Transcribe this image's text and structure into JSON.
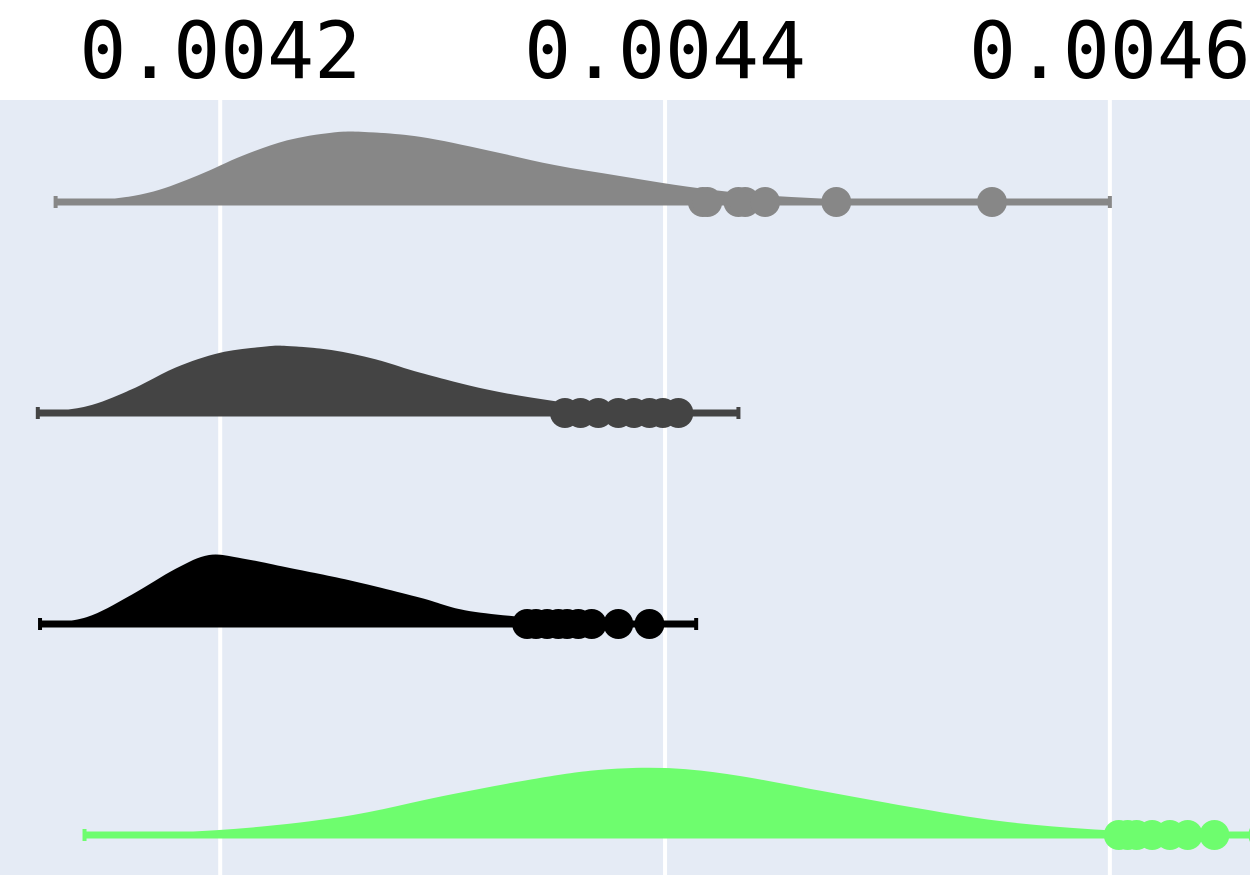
{
  "chart_data": {
    "type": "violin",
    "title": "",
    "xlabel": "",
    "ylabel": "",
    "x_axis_position": "top",
    "xlim": [
      0.004101,
      0.004663
    ],
    "xticks": [
      0.0042,
      0.0044,
      0.0046
    ],
    "xtick_labels": [
      "0.0042",
      "0.0044",
      "0.0046"
    ],
    "grid": true,
    "legend": "none",
    "background_color": "#e5ebf5",
    "gridline_color": "#ffffff",
    "series": [
      {
        "color": "#878787",
        "min": 0.004126,
        "max": 0.0046,
        "density": [
          [
            0.004126,
            0.0
          ],
          [
            0.00415,
            0.04
          ],
          [
            0.00417,
            0.15
          ],
          [
            0.00419,
            0.38
          ],
          [
            0.00421,
            0.66
          ],
          [
            0.00423,
            0.88
          ],
          [
            0.00425,
            0.99
          ],
          [
            0.004265,
            1.0
          ],
          [
            0.00429,
            0.93
          ],
          [
            0.00432,
            0.74
          ],
          [
            0.00435,
            0.53
          ],
          [
            0.00438,
            0.37
          ],
          [
            0.00441,
            0.22
          ],
          [
            0.00444,
            0.11
          ],
          [
            0.00447,
            0.05
          ],
          [
            0.0045,
            0.02
          ],
          [
            0.00454,
            0.006
          ],
          [
            0.0046,
            0.0
          ]
        ],
        "outliers": [
          0.004417,
          0.004419,
          0.004433,
          0.004436,
          0.004445,
          0.004477,
          0.004547
        ]
      },
      {
        "color": "#444444",
        "min": 0.004118,
        "max": 0.004433,
        "density": [
          [
            0.004118,
            0.0
          ],
          [
            0.00414,
            0.1
          ],
          [
            0.00416,
            0.35
          ],
          [
            0.00418,
            0.68
          ],
          [
            0.0042,
            0.9
          ],
          [
            0.00422,
            0.99
          ],
          [
            0.00423,
            1.0
          ],
          [
            0.00425,
            0.94
          ],
          [
            0.00427,
            0.8
          ],
          [
            0.00429,
            0.6
          ],
          [
            0.00432,
            0.35
          ],
          [
            0.00435,
            0.18
          ],
          [
            0.00438,
            0.08
          ],
          [
            0.00441,
            0.03
          ],
          [
            0.004433,
            0.0
          ]
        ],
        "outliers": [
          0.004355,
          0.004362,
          0.00437,
          0.004379,
          0.004386,
          0.004393,
          0.004399,
          0.004406
        ]
      },
      {
        "color": "#000000",
        "min": 0.004119,
        "max": 0.004414,
        "density": [
          [
            0.004119,
            0.0
          ],
          [
            0.00414,
            0.1
          ],
          [
            0.00416,
            0.42
          ],
          [
            0.00418,
            0.8
          ],
          [
            0.004195,
            1.0
          ],
          [
            0.00421,
            0.95
          ],
          [
            0.00423,
            0.82
          ],
          [
            0.00426,
            0.62
          ],
          [
            0.00429,
            0.38
          ],
          [
            0.00431,
            0.2
          ],
          [
            0.00434,
            0.09
          ],
          [
            0.00437,
            0.03
          ],
          [
            0.004414,
            0.0
          ]
        ],
        "outliers": [
          0.004338,
          0.004342,
          0.004347,
          0.004352,
          0.004356,
          0.004361,
          0.004367,
          0.004379,
          0.004393
        ]
      },
      {
        "color": "#6efd6e",
        "min": 0.004139,
        "max": 0.00472,
        "density": [
          [
            0.004139,
            0.0
          ],
          [
            0.00418,
            0.04
          ],
          [
            0.00422,
            0.13
          ],
          [
            0.00426,
            0.3
          ],
          [
            0.0043,
            0.58
          ],
          [
            0.00434,
            0.83
          ],
          [
            0.00437,
            0.97
          ],
          [
            0.0044,
            1.0
          ],
          [
            0.00443,
            0.9
          ],
          [
            0.00447,
            0.66
          ],
          [
            0.00451,
            0.42
          ],
          [
            0.00455,
            0.21
          ],
          [
            0.00459,
            0.09
          ],
          [
            0.00463,
            0.03
          ],
          [
            0.00468,
            0.008
          ],
          [
            0.00472,
            0.0
          ]
        ],
        "outliers": [
          0.004604,
          0.004608,
          0.004612,
          0.004619,
          0.004627,
          0.004635,
          0.004647,
          0.004669,
          0.00469
        ]
      }
    ]
  }
}
